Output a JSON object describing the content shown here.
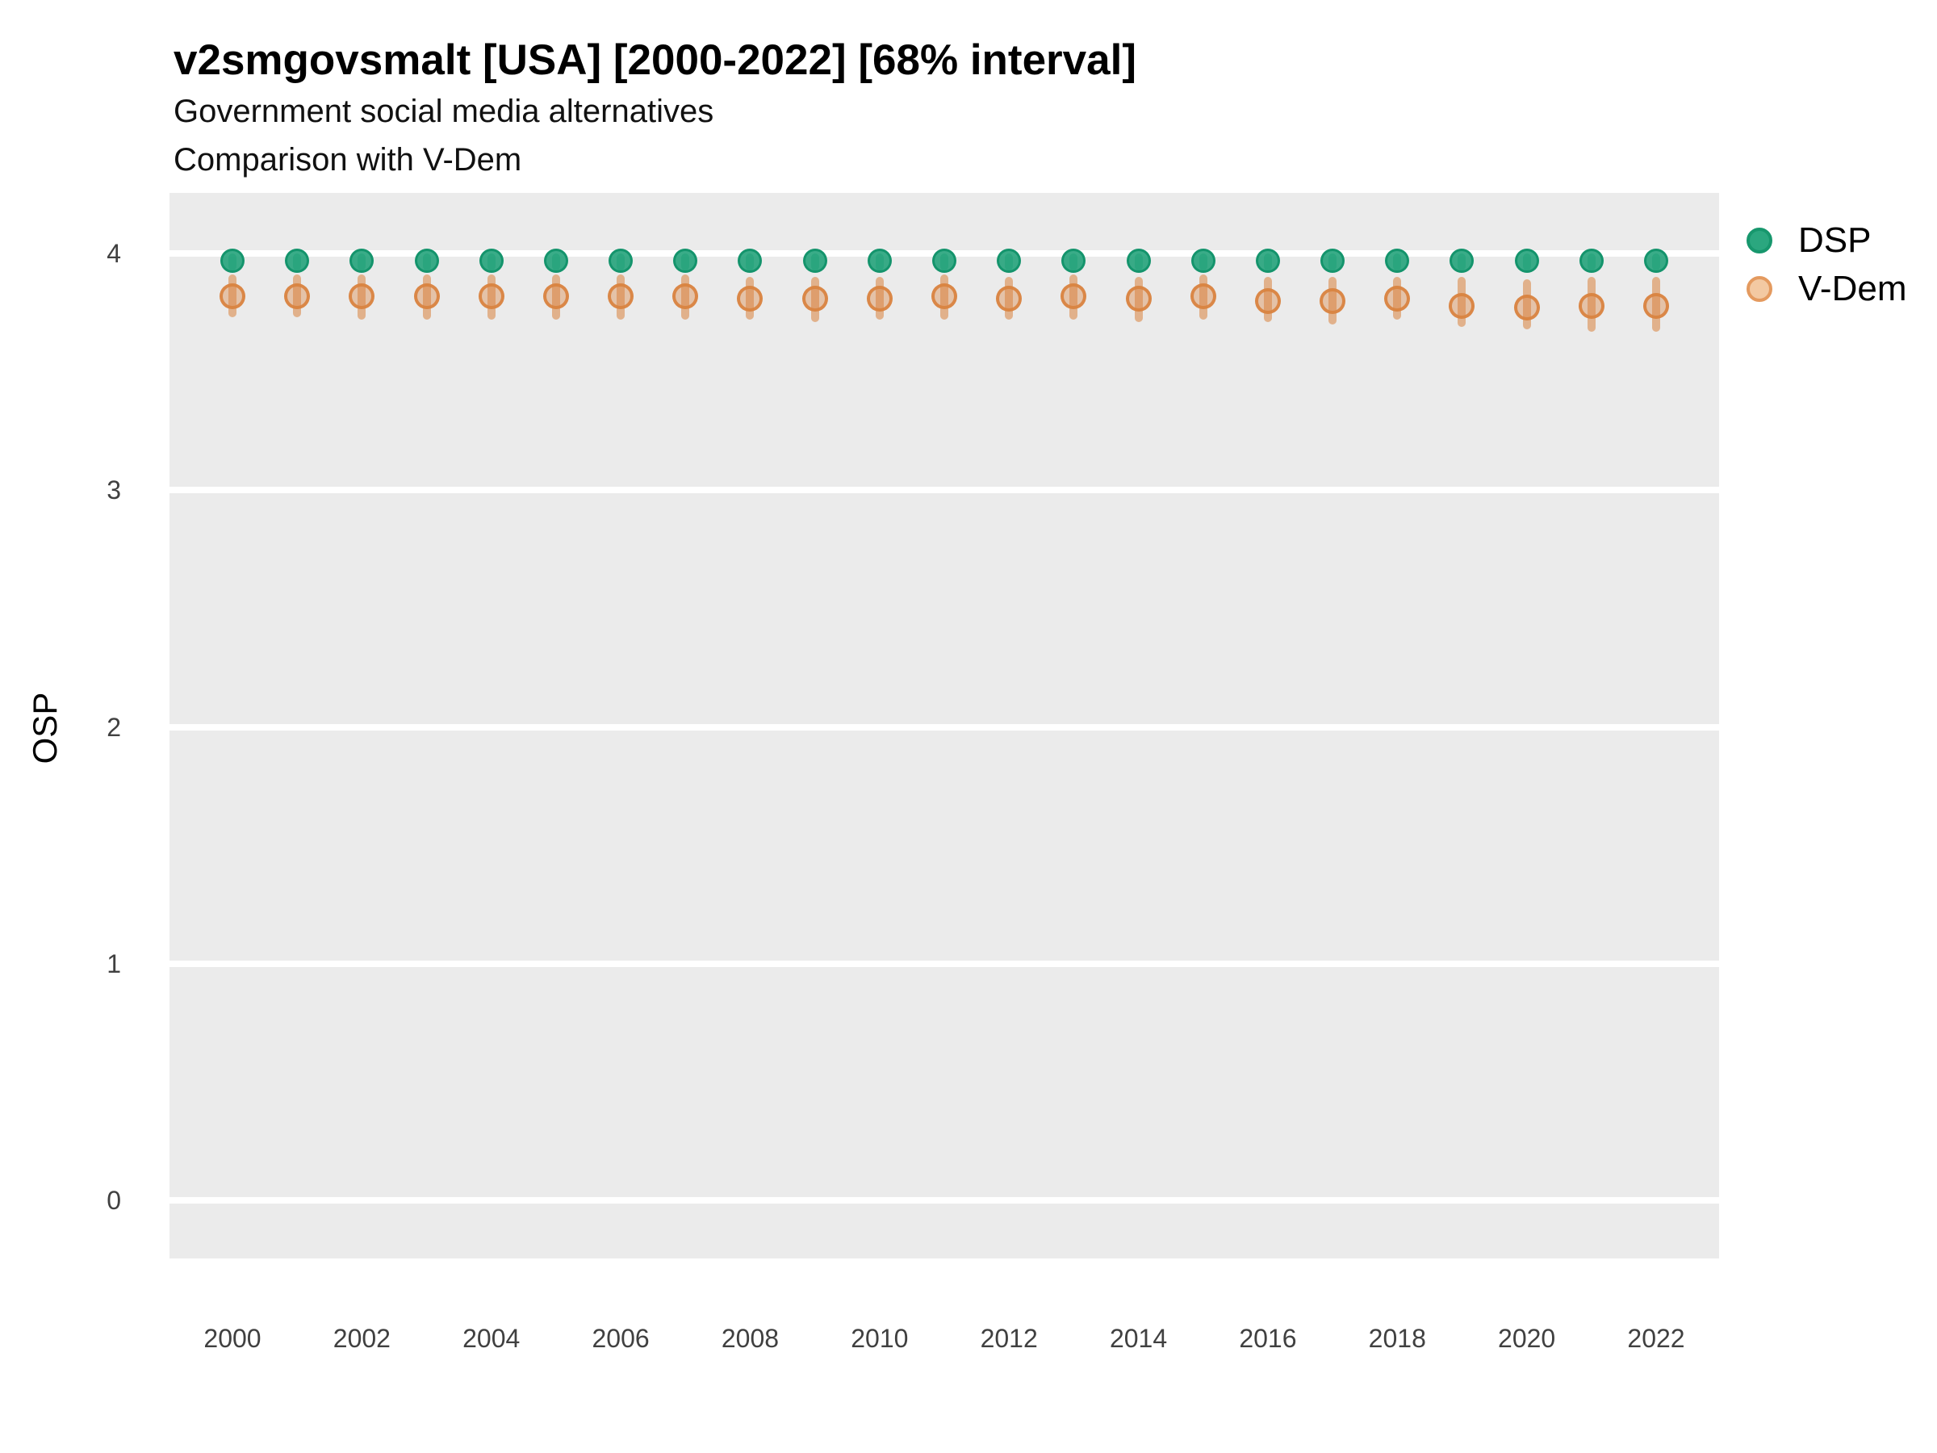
{
  "page": {
    "title": "v2smgovsmalt [USA] [2000-2022] [68% interval]",
    "subtitle1": "Government social media alternatives",
    "subtitle2": "Comparison with V-Dem"
  },
  "chart_data": {
    "type": "pointrange-scatter",
    "title": "v2smgovsmalt [USA] [2000-2022] [68% interval]",
    "subtitle": [
      "Government social media alternatives",
      "Comparison with V-Dem"
    ],
    "xlabel": "",
    "ylabel": "OSP",
    "interval_level": "68%",
    "x_ticks": [
      2000,
      2002,
      2004,
      2006,
      2008,
      2010,
      2012,
      2014,
      2016,
      2018,
      2020,
      2022
    ],
    "y_ticks": [
      0,
      1,
      2,
      3,
      4
    ],
    "x_range_years": [
      2000,
      2022
    ],
    "ylim": [
      0,
      4
    ],
    "grid": "horizontal-major-only",
    "legend_position": "top-right",
    "panel_background": "#EBEBEB",
    "gridline_color": "#FFFFFF",
    "years": [
      2000,
      2001,
      2002,
      2003,
      2004,
      2005,
      2006,
      2007,
      2008,
      2009,
      2010,
      2011,
      2012,
      2013,
      2014,
      2015,
      2016,
      2017,
      2018,
      2019,
      2020,
      2021,
      2022
    ],
    "series": [
      {
        "name": "DSP",
        "base_color": "#1FA178",
        "ring_color": "#13946C",
        "fill_alpha": 0.88,
        "line_alpha": 0.55,
        "values": [
          3.97,
          3.97,
          3.97,
          3.97,
          3.97,
          3.97,
          3.97,
          3.97,
          3.97,
          3.97,
          3.97,
          3.97,
          3.97,
          3.97,
          3.97,
          3.97,
          3.97,
          3.97,
          3.97,
          3.97,
          3.97,
          3.97,
          3.97
        ],
        "lo": [
          3.93,
          3.93,
          3.93,
          3.93,
          3.93,
          3.93,
          3.93,
          3.93,
          3.93,
          3.93,
          3.93,
          3.93,
          3.93,
          3.93,
          3.93,
          3.93,
          3.93,
          3.93,
          3.93,
          3.93,
          3.93,
          3.93,
          3.93
        ],
        "hi": [
          4.0,
          4.0,
          4.0,
          4.0,
          4.0,
          4.0,
          4.0,
          4.0,
          4.0,
          4.0,
          4.0,
          4.0,
          4.0,
          4.0,
          4.0,
          4.0,
          4.0,
          4.0,
          4.0,
          4.0,
          4.0,
          4.0,
          4.0
        ]
      },
      {
        "name": "V-Dem",
        "base_color": "#D9823C",
        "ring_color": "#D98441",
        "fill_alpha": 0.38,
        "line_alpha": 0.55,
        "values": [
          3.82,
          3.82,
          3.82,
          3.82,
          3.82,
          3.82,
          3.82,
          3.82,
          3.81,
          3.81,
          3.81,
          3.82,
          3.81,
          3.82,
          3.81,
          3.82,
          3.8,
          3.8,
          3.81,
          3.78,
          3.77,
          3.78,
          3.78
        ],
        "lo": [
          3.73,
          3.73,
          3.72,
          3.72,
          3.72,
          3.72,
          3.72,
          3.72,
          3.72,
          3.71,
          3.72,
          3.72,
          3.72,
          3.72,
          3.71,
          3.72,
          3.71,
          3.7,
          3.72,
          3.69,
          3.68,
          3.67,
          3.67
        ],
        "hi": [
          3.91,
          3.91,
          3.91,
          3.91,
          3.91,
          3.91,
          3.91,
          3.91,
          3.9,
          3.9,
          3.9,
          3.91,
          3.9,
          3.91,
          3.9,
          3.91,
          3.9,
          3.9,
          3.9,
          3.9,
          3.89,
          3.9,
          3.9
        ]
      }
    ],
    "legend": [
      {
        "label": "DSP",
        "dot_fill": "#2BA77F",
        "dot_ring": "#17976D"
      },
      {
        "label": "V-Dem",
        "dot_fill": "#F3C9A2",
        "dot_ring": "#E49A5F"
      }
    ]
  }
}
